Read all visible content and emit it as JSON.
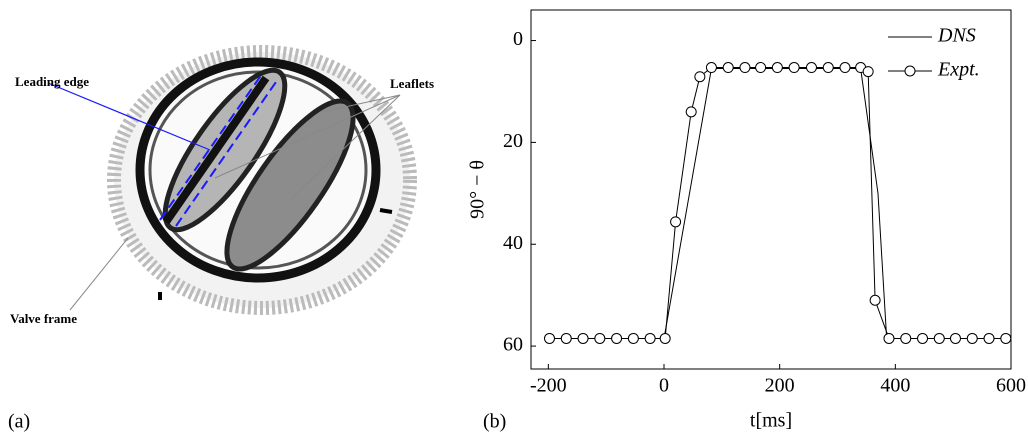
{
  "figure": {
    "panel_a": "(a)",
    "panel_b": "(b)",
    "annotations": {
      "leading_edge": "Leading edge",
      "leaflets": "Leaflets",
      "valve_frame": "Valve frame"
    }
  },
  "chart_data": {
    "type": "line",
    "xlabel": "t[ms]",
    "ylabel": "90° − θ",
    "xlim": [
      -230,
      600
    ],
    "xticks": [
      -200,
      0,
      200,
      400,
      600
    ],
    "ylim": [
      -6,
      64.5
    ],
    "yticks": [
      0,
      20,
      40,
      60
    ],
    "y_inverted": true,
    "legend": "upper right",
    "series": [
      {
        "name": "DNS",
        "color": "#000000",
        "marker": "none",
        "x": [
          -198,
          0,
          82,
          340,
          370,
          385,
          600
        ],
        "values": [
          58.5,
          58.5,
          5.5,
          5.5,
          30,
          58.5,
          58.5
        ]
      },
      {
        "name": "Expt.",
        "color": "#000000",
        "marker": "circle",
        "x": [
          -198,
          -169,
          -140,
          -111,
          -82,
          -53,
          -24,
          2,
          20,
          47,
          62,
          82,
          111,
          140,
          167,
          196,
          225,
          255,
          284,
          313,
          340,
          353,
          365,
          389,
          418,
          447,
          476,
          504,
          533,
          562,
          591
        ],
        "values": [
          58.5,
          58.5,
          58.5,
          58.5,
          58.5,
          58.5,
          58.5,
          58.5,
          35.6,
          14,
          7.1,
          5.3,
          5.3,
          5.3,
          5.3,
          5.3,
          5.3,
          5.3,
          5.3,
          5.3,
          5.3,
          6.1,
          51,
          58.5,
          58.5,
          58.5,
          58.5,
          58.5,
          58.5,
          58.5,
          58.5
        ]
      }
    ]
  }
}
